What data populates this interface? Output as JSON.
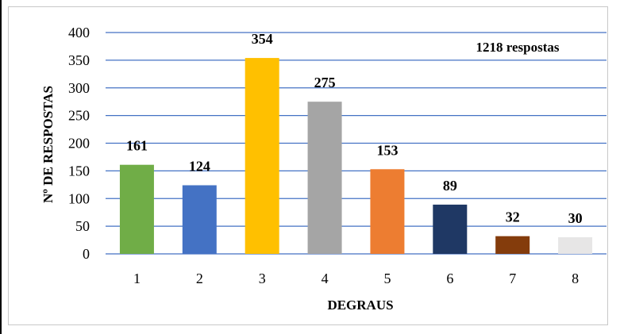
{
  "chart_data": {
    "type": "bar",
    "categories": [
      "1",
      "2",
      "3",
      "4",
      "5",
      "6",
      "7",
      "8"
    ],
    "values": [
      161,
      124,
      354,
      275,
      153,
      89,
      32,
      30
    ],
    "bar_colors": [
      "#70AD47",
      "#4472C4",
      "#FFC000",
      "#A5A5A5",
      "#ED7D31",
      "#1F3864",
      "#843C0C",
      "#E7E6E6"
    ],
    "gridline_color": "#4472C4",
    "title": "",
    "xlabel": "DEGRAUS",
    "ylabel": "Nº DE RESPOSTAS",
    "ylim": [
      0,
      400
    ],
    "yticks": [
      0,
      50,
      100,
      150,
      200,
      250,
      300,
      350,
      400
    ],
    "grid": true,
    "legend": "none",
    "annotation": "1218 respostas"
  }
}
